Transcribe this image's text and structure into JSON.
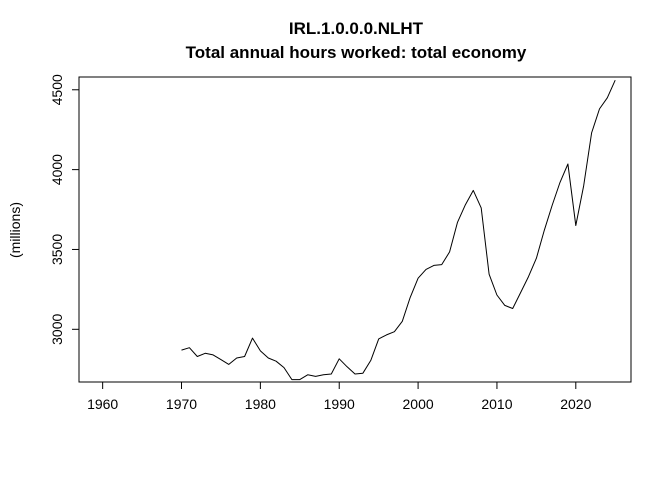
{
  "chart_data": {
    "type": "line",
    "title": "IRL.1.0.0.0.NLHT",
    "subtitle": "Total annual hours worked: total economy",
    "xlabel": "",
    "ylabel": "(millions)",
    "xlim": [
      1957,
      2027
    ],
    "ylim": [
      2670,
      4580
    ],
    "x_ticks": [
      1960,
      1970,
      1980,
      1990,
      2000,
      2010,
      2020
    ],
    "y_ticks": [
      3000,
      3500,
      4000,
      4500
    ],
    "grid": false,
    "legend": "none",
    "line_color": "#000000",
    "series": [
      {
        "x": [
          1970,
          1971,
          1972,
          1973,
          1974,
          1975,
          1976,
          1977,
          1978,
          1979,
          1980,
          1981,
          1982,
          1983,
          1984,
          1985,
          1986,
          1987,
          1988,
          1989,
          1990,
          1991,
          1992,
          1993,
          1994,
          1995,
          1996,
          1997,
          1998,
          1999,
          2000,
          2001,
          2002,
          2003,
          2004,
          2005,
          2006,
          2007,
          2008,
          2009,
          2010,
          2011,
          2012,
          2013,
          2014,
          2015,
          2016,
          2017,
          2018,
          2019,
          2020,
          2021,
          2022,
          2023,
          2024,
          2025
        ],
        "y": [
          2870,
          2885,
          2830,
          2850,
          2840,
          2810,
          2780,
          2820,
          2830,
          2945,
          2865,
          2820,
          2800,
          2760,
          2685,
          2685,
          2715,
          2705,
          2715,
          2720,
          2815,
          2765,
          2720,
          2725,
          2805,
          2940,
          2965,
          2985,
          3050,
          3200,
          3320,
          3375,
          3400,
          3405,
          3485,
          3670,
          3780,
          3870,
          3760,
          3345,
          3215,
          3150,
          3130,
          3230,
          3330,
          3445,
          3620,
          3775,
          3920,
          4035,
          3650,
          3900,
          4230,
          4380,
          4450,
          4560
        ]
      }
    ]
  }
}
